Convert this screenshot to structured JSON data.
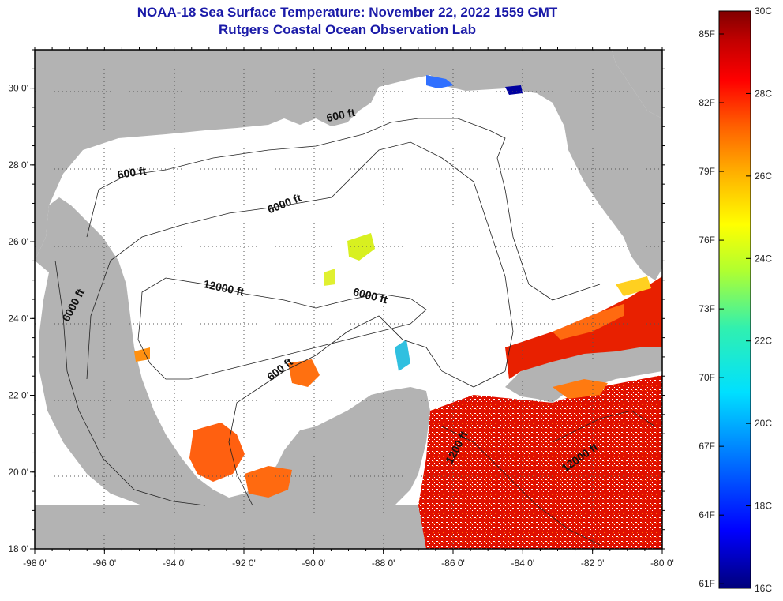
{
  "header": {
    "title": "NOAA-18 Sea Surface Temperature:  November 22, 2022 1559 GMT",
    "subtitle": "Rutgers Coastal Ocean Observation Lab"
  },
  "map": {
    "lon_range": [
      -98,
      -80
    ],
    "lat_range": [
      18,
      31
    ],
    "lon_ticks": [
      {
        "value": -98,
        "label": "-98 0'"
      },
      {
        "value": -96,
        "label": "-96 0'"
      },
      {
        "value": -94,
        "label": "-94 0'"
      },
      {
        "value": -92,
        "label": "-92 0'"
      },
      {
        "value": -90,
        "label": "-90 0'"
      },
      {
        "value": -88,
        "label": "-88 0'"
      },
      {
        "value": -86,
        "label": "-86 0'"
      },
      {
        "value": -84,
        "label": "-84 0'"
      },
      {
        "value": -82,
        "label": "-82 0'"
      },
      {
        "value": -80,
        "label": "-80 0'"
      }
    ],
    "lat_ticks": [
      {
        "value": 30,
        "label": "30 0'"
      },
      {
        "value": 28,
        "label": "28 0'"
      },
      {
        "value": 26,
        "label": "26 0'"
      },
      {
        "value": 24,
        "label": "24 0'"
      },
      {
        "value": 22,
        "label": "22 0'"
      },
      {
        "value": 20,
        "label": "20 0'"
      },
      {
        "value": 18,
        "label": "18 0'"
      }
    ],
    "contour_labels": [
      {
        "text": "600 ft",
        "lon": -89.2,
        "lat": 29.2,
        "angle": -12
      },
      {
        "text": "600 ft",
        "lon": -95.2,
        "lat": 27.7,
        "angle": -8
      },
      {
        "text": "6000 ft",
        "lon": -90.8,
        "lat": 26.9,
        "angle": -22
      },
      {
        "text": "12000 ft",
        "lon": -92.6,
        "lat": 24.7,
        "angle": 12
      },
      {
        "text": "6000 ft",
        "lon": -88.4,
        "lat": 24.5,
        "angle": 14
      },
      {
        "text": "6000 ft",
        "lon": -96.8,
        "lat": 24.3,
        "angle": -62
      },
      {
        "text": "600 ft",
        "lon": -90.9,
        "lat": 22.6,
        "angle": -38
      },
      {
        "text": "1200 ft",
        "lon": -85.8,
        "lat": 20.6,
        "angle": -62
      },
      {
        "text": "12000 ft",
        "lon": -82.3,
        "lat": 20.3,
        "angle": -35
      }
    ],
    "colors": {
      "land": "#b3b3b3",
      "ocean": "#ffffff",
      "border": "#000000",
      "grid": "#444444"
    }
  },
  "colorbar": {
    "celsius_labels": [
      {
        "value": 30,
        "label": "30C"
      },
      {
        "value": 28,
        "label": "28C"
      },
      {
        "value": 26,
        "label": "26C"
      },
      {
        "value": 24,
        "label": "24C"
      },
      {
        "value": 22,
        "label": "22C"
      },
      {
        "value": 20,
        "label": "20C"
      },
      {
        "value": 18,
        "label": "18C"
      },
      {
        "value": 16,
        "label": "16C"
      }
    ],
    "fahrenheit_labels": [
      {
        "value": 85,
        "label": "85F"
      },
      {
        "value": 82,
        "label": "82F"
      },
      {
        "value": 79,
        "label": "79F"
      },
      {
        "value": 76,
        "label": "76F"
      },
      {
        "value": 73,
        "label": "73F"
      },
      {
        "value": 70,
        "label": "70F"
      },
      {
        "value": 67,
        "label": "67F"
      },
      {
        "value": 64,
        "label": "64F"
      },
      {
        "value": 61,
        "label": "61F"
      }
    ],
    "c_range": [
      16,
      30
    ],
    "colors": [
      "#00007a",
      "#0000ff",
      "#0080ff",
      "#00e0ff",
      "#30f0b0",
      "#b0ff30",
      "#ffff00",
      "#ffb000",
      "#ff6000",
      "#ff0000",
      "#c00000",
      "#800000"
    ]
  }
}
